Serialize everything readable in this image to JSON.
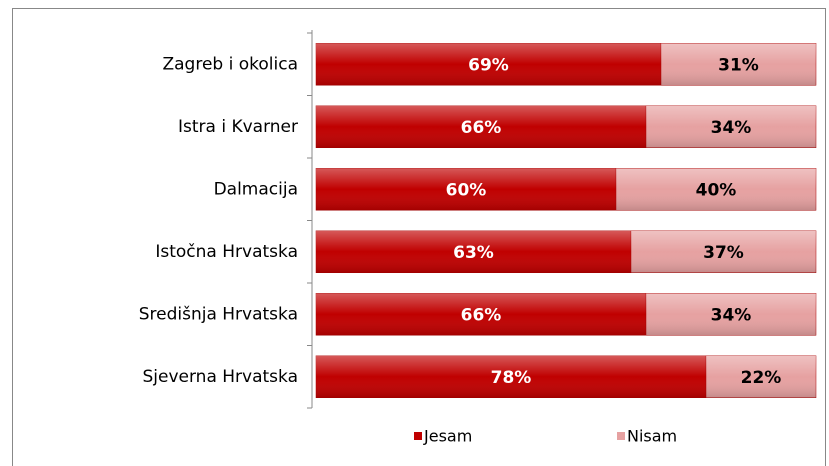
{
  "chart_data": {
    "type": "bar",
    "orientation": "horizontal",
    "stacked": true,
    "categories": [
      "Zagreb i okolica",
      "Istra i Kvarner",
      "Dalmacija",
      "Istočna Hrvatska",
      "Središnja Hrvatska",
      "Sjeverna Hrvatska"
    ],
    "series": [
      {
        "name": "Jesam",
        "color": "#c00000",
        "values": [
          69,
          66,
          60,
          63,
          66,
          78
        ],
        "value_labels": [
          "69%",
          "66%",
          "60%",
          "63%",
          "66%",
          "78%"
        ]
      },
      {
        "name": "Nisam",
        "color": "#e6a1a1",
        "values": [
          31,
          34,
          40,
          37,
          34,
          22
        ],
        "value_labels": [
          "31%",
          "34%",
          "40%",
          "37%",
          "34%",
          "22%"
        ]
      }
    ],
    "xlim": [
      0,
      100
    ]
  }
}
